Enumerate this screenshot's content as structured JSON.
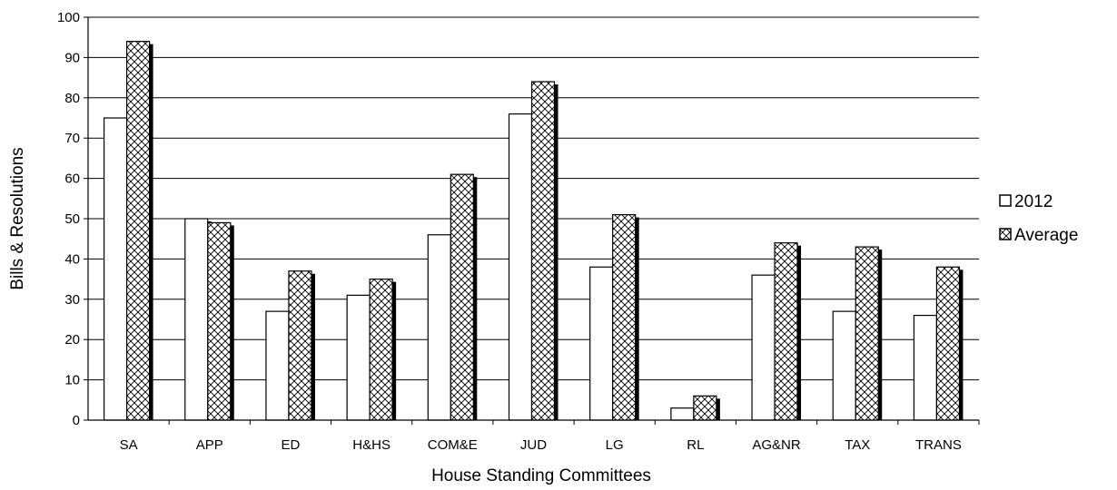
{
  "chart_data": {
    "type": "bar",
    "title": "",
    "xlabel": "House Standing Committees",
    "ylabel": "Bills & Resolutions",
    "categories": [
      "SA",
      "APP",
      "ED",
      "H&HS",
      "COM&E",
      "JUD",
      "LG",
      "RL",
      "AG&NR",
      "TAX",
      "TRANS"
    ],
    "series": [
      {
        "name": "2012",
        "values": [
          75,
          50,
          27,
          31,
          46,
          76,
          38,
          3,
          36,
          27,
          26
        ],
        "pattern": "none",
        "fill": "#ffffff"
      },
      {
        "name": "Average",
        "values": [
          94,
          49,
          37,
          35,
          61,
          84,
          51,
          6,
          44,
          43,
          38
        ],
        "pattern": "crosshatch",
        "fill": "#ffffff"
      }
    ],
    "ylim": [
      0,
      100
    ],
    "yticks": [
      0,
      10,
      20,
      30,
      40,
      50,
      60,
      70,
      80,
      90,
      100
    ],
    "grid": true,
    "legend": "right",
    "colors": {
      "bar_stroke": "#000000",
      "bar_shadow": "#000000",
      "grid": "#000000",
      "background": "#ffffff"
    }
  }
}
